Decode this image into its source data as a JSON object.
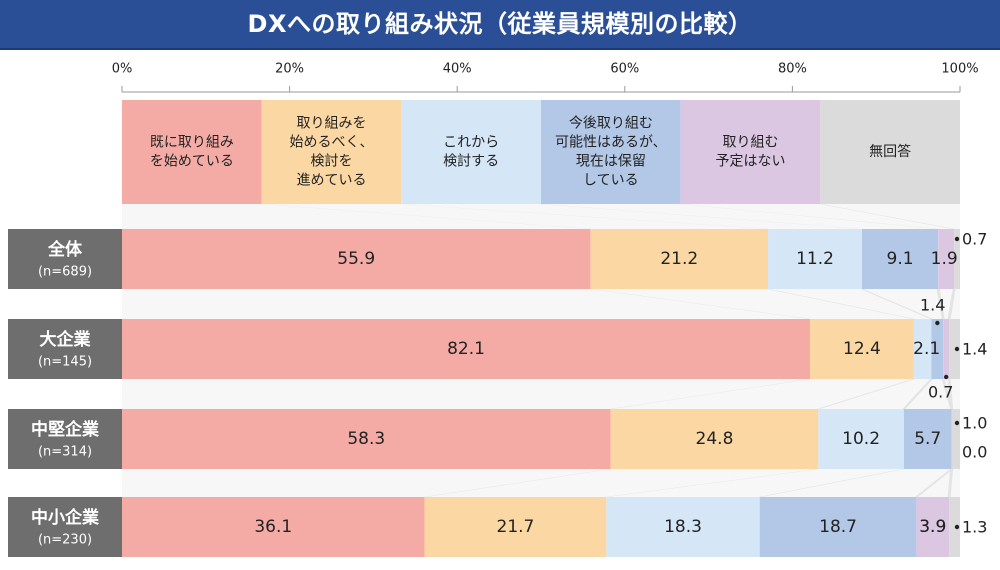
{
  "title": "DXへの取り組み状況（従業員規模別の比較）",
  "colors": {
    "title_bg": "#2a4f97",
    "row_label_bg": "#6e6e6e",
    "connector": "#ededed",
    "grid": "#9a9a9a"
  },
  "chart_data": {
    "type": "bar",
    "orientation": "horizontal",
    "stacked": true,
    "title": "DXへの取り組み状況（従業員規模別の比較）",
    "xlim": [
      0,
      100
    ],
    "x_ticks": [
      "0%",
      "20%",
      "40%",
      "60%",
      "80%",
      "100%"
    ],
    "x_tick_values": [
      0,
      20,
      40,
      60,
      80,
      100
    ],
    "legend_placement": "top",
    "series": [
      {
        "name": "既に取り組み\nを始めている",
        "color": "#f4aba5"
      },
      {
        "name": "取り組みを\n始めるべく、\n検討を\n進めている",
        "color": "#fbd8a3"
      },
      {
        "name": "これから\n検討する",
        "color": "#d5e6f7"
      },
      {
        "name": "今後取り組む\n可能性はあるが、\n現在は保留\nしている",
        "color": "#b3c7e7"
      },
      {
        "name": "取り組む\n予定はない",
        "color": "#dcc7e2"
      },
      {
        "name": "無回答",
        "color": "#dbdbdb"
      }
    ],
    "categories": [
      {
        "name": "全体",
        "n": "(n=689)"
      },
      {
        "name": "大企業",
        "n": "(n=145)"
      },
      {
        "name": "中堅企業",
        "n": "(n=314)"
      },
      {
        "name": "中小企業",
        "n": "(n=230)"
      }
    ],
    "values": [
      [
        55.9,
        21.2,
        11.2,
        9.1,
        1.9,
        0.7
      ],
      [
        82.1,
        12.4,
        2.1,
        1.4,
        0.7,
        1.4
      ],
      [
        58.3,
        24.8,
        10.2,
        5.7,
        0.0,
        1.0
      ],
      [
        36.1,
        21.7,
        18.3,
        18.7,
        3.9,
        1.3
      ]
    ],
    "value_labels": [
      [
        "55.9",
        "21.2",
        "11.2",
        "9.1",
        "1.9",
        "0.7"
      ],
      [
        "82.1",
        "12.4",
        "2.1",
        "1.4",
        "0.7",
        "1.4"
      ],
      [
        "58.3",
        "24.8",
        "10.2",
        "5.7",
        "0.0",
        "1.0"
      ],
      [
        "36.1",
        "21.7",
        "18.3",
        "18.7",
        "3.9",
        "1.3"
      ]
    ]
  }
}
